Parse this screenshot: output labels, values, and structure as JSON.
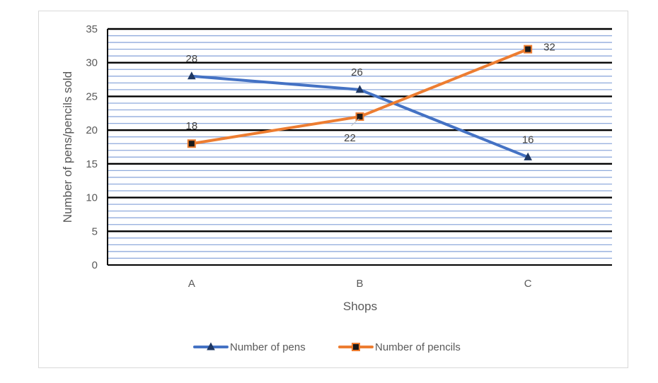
{
  "chart_data": {
    "type": "line",
    "categories": [
      "A",
      "B",
      "C"
    ],
    "series": [
      {
        "name": "Number of pens",
        "values": [
          28,
          26,
          16
        ],
        "color": "#4472C4",
        "marker": "triangle"
      },
      {
        "name": "Number of pencils",
        "values": [
          18,
          22,
          32
        ],
        "color": "#ED7D31",
        "marker": "square"
      }
    ],
    "title": "",
    "xlabel": "Shops",
    "ylabel": "Number of pens/pencils sold",
    "ylim": [
      0,
      35
    ],
    "yticks": [
      0,
      5,
      10,
      15,
      20,
      25,
      30,
      35
    ],
    "major_gridline_color": "#000000",
    "minor_gridline_color": "#8FAADC",
    "grid": true,
    "data_labels": true,
    "legend_position": "bottom"
  }
}
